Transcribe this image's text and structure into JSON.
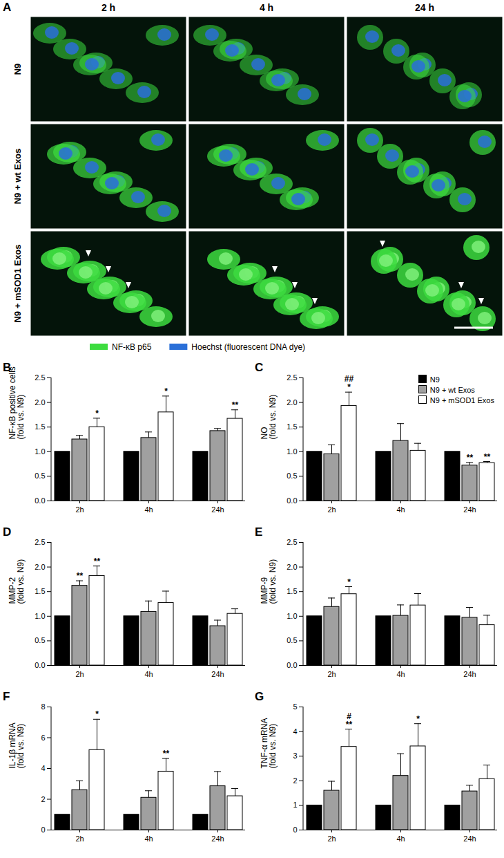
{
  "panel_a": {
    "letter": "A",
    "columns": [
      "2 h",
      "4 h",
      "24 h"
    ],
    "rows": [
      "N9",
      "N9 + wt Exos",
      "N9 + mSOD1 Exos"
    ],
    "legend": [
      {
        "label": "NF-κB p65",
        "color": "#3ddc3f"
      },
      {
        "label": "Hoechst (fluorescent DNA dye)",
        "color": "#2a6fd8"
      }
    ]
  },
  "chart_data": [
    {
      "type": "bar",
      "title": "B",
      "y_label": [
        "NF-κB positive cells",
        "(fold vs. N9)"
      ],
      "categories": [
        "2h",
        "4h",
        "24h"
      ],
      "ylim": [
        0,
        2.5
      ],
      "yticks": [
        {
          "value": 0,
          "label": "0.0"
        },
        {
          "value": 0.5,
          "label": "0.5"
        },
        {
          "value": 1,
          "label": "1.0"
        },
        {
          "value": 1.5,
          "label": "1.5"
        },
        {
          "value": 2,
          "label": "2.0"
        },
        {
          "value": 2.5,
          "label": "2.5"
        }
      ],
      "series": [
        {
          "name": "N9",
          "color": "#000000",
          "values": [
            1,
            1,
            1
          ]
        },
        {
          "name": "N9 + wt Exos",
          "color": "#a0a0a0",
          "values": [
            1.25,
            1.28,
            1.42
          ],
          "errors": [
            0.08,
            0.12,
            0.05
          ]
        },
        {
          "name": "N9 + mSOD1 Exos",
          "color": "#ffffff",
          "values": [
            1.5,
            1.8,
            1.67
          ],
          "errors": [
            0.18,
            0.33,
            0.18
          ],
          "annotations": [
            "*",
            "*",
            "**"
          ]
        }
      ]
    },
    {
      "type": "bar",
      "title": "C",
      "y_label": [
        "NO",
        "(fold vs. N9)"
      ],
      "categories": [
        "2h",
        "4h",
        "24h"
      ],
      "legend": "top-right",
      "ylim": [
        0,
        2.5
      ],
      "yticks": [
        {
          "value": 0,
          "label": "0.0"
        },
        {
          "value": 0.5,
          "label": "0.5"
        },
        {
          "value": 1,
          "label": "1.0"
        },
        {
          "value": 1.5,
          "label": "1.5"
        },
        {
          "value": 2,
          "label": "2.0"
        },
        {
          "value": 2.5,
          "label": "2.5"
        }
      ],
      "series": [
        {
          "name": "N9",
          "color": "#000000",
          "values": [
            1,
            1,
            1
          ]
        },
        {
          "name": "N9 + wt Exos",
          "color": "#a0a0a0",
          "values": [
            0.95,
            1.22,
            0.72
          ],
          "errors": [
            0.19,
            0.35,
            0.06
          ],
          "annotations": [
            null,
            null,
            "**"
          ]
        },
        {
          "name": "N9 + mSOD1 Exos",
          "color": "#ffffff",
          "values": [
            1.93,
            1.02,
            0.77
          ],
          "errors": [
            0.28,
            0.15,
            0.03
          ],
          "annotations": [
            "##\n*",
            null,
            "**"
          ]
        }
      ]
    },
    {
      "type": "bar",
      "title": "D",
      "y_label": [
        "MMP-2",
        "(fold vs. N9)"
      ],
      "categories": [
        "2h",
        "4h",
        "24h"
      ],
      "ylim": [
        0,
        2.5
      ],
      "yticks": [
        {
          "value": 0,
          "label": "0.0"
        },
        {
          "value": 0.5,
          "label": "0.5"
        },
        {
          "value": 1,
          "label": "1.0"
        },
        {
          "value": 1.5,
          "label": "1.5"
        },
        {
          "value": 2,
          "label": "2.0"
        },
        {
          "value": 2.5,
          "label": "2.5"
        }
      ],
      "series": [
        {
          "name": "N9",
          "color": "#000000",
          "values": [
            1,
            1,
            1
          ]
        },
        {
          "name": "N9 + wt Exos",
          "color": "#a0a0a0",
          "values": [
            1.62,
            1.09,
            0.8
          ],
          "errors": [
            0.1,
            0.22,
            0.12
          ],
          "annotations": [
            "**",
            null,
            null
          ]
        },
        {
          "name": "N9 + mSOD1 Exos",
          "color": "#ffffff",
          "values": [
            1.82,
            1.27,
            1.05
          ],
          "errors": [
            0.2,
            0.24,
            0.1
          ],
          "annotations": [
            "**",
            null,
            null
          ]
        }
      ]
    },
    {
      "type": "bar",
      "title": "E",
      "y_label": [
        "MMP-9",
        "(fold vs. N9)"
      ],
      "categories": [
        "2h",
        "4h",
        "24h"
      ],
      "ylim": [
        0,
        2.5
      ],
      "yticks": [
        {
          "value": 0,
          "label": "0.0"
        },
        {
          "value": 0.5,
          "label": "0.5"
        },
        {
          "value": 1,
          "label": "1.0"
        },
        {
          "value": 1.5,
          "label": "1.5"
        },
        {
          "value": 2,
          "label": "2.0"
        },
        {
          "value": 2.5,
          "label": "2.5"
        }
      ],
      "series": [
        {
          "name": "N9",
          "color": "#000000",
          "values": [
            1,
            1,
            1
          ]
        },
        {
          "name": "N9 + wt Exos",
          "color": "#a0a0a0",
          "values": [
            1.19,
            1.01,
            0.97
          ],
          "errors": [
            0.18,
            0.22,
            0.21
          ]
        },
        {
          "name": "N9 + mSOD1 Exos",
          "color": "#ffffff",
          "values": [
            1.45,
            1.22,
            0.82
          ],
          "errors": [
            0.15,
            0.24,
            0.2
          ],
          "annotations": [
            "*",
            null,
            null
          ]
        }
      ]
    },
    {
      "type": "bar",
      "title": "F",
      "y_label": [
        "IL-1β mRNA",
        "(fold vs. N9)"
      ],
      "categories": [
        "2h",
        "4h",
        "24h"
      ],
      "ylim": [
        0,
        8
      ],
      "yticks": [
        0,
        2,
        4,
        6,
        8
      ],
      "series": [
        {
          "name": "N9",
          "color": "#000000",
          "values": [
            1,
            1,
            1
          ]
        },
        {
          "name": "N9 + wt Exos",
          "color": "#a0a0a0",
          "values": [
            2.6,
            2.1,
            2.85
          ],
          "errors": [
            0.6,
            0.45,
            0.95
          ]
        },
        {
          "name": "N9 + mSOD1 Exos",
          "color": "#ffffff",
          "values": [
            5.2,
            3.8,
            2.2
          ],
          "errors": [
            2.0,
            0.85,
            0.5
          ],
          "annotations": [
            "*",
            "**",
            null
          ]
        }
      ]
    },
    {
      "type": "bar",
      "title": "G",
      "y_label": [
        "TNF-α mRNA",
        "(fold vs. N9)"
      ],
      "categories": [
        "2h",
        "4h",
        "24h"
      ],
      "ylim": [
        0,
        5
      ],
      "yticks": [
        0,
        1,
        2,
        3,
        4,
        5
      ],
      "series": [
        {
          "name": "N9",
          "color": "#000000",
          "values": [
            1,
            1,
            1
          ]
        },
        {
          "name": "N9 + wt Exos",
          "color": "#a0a0a0",
          "values": [
            1.6,
            2.2,
            1.57
          ],
          "errors": [
            0.38,
            0.9,
            0.25
          ]
        },
        {
          "name": "N9 + mSOD1 Exos",
          "color": "#ffffff",
          "values": [
            3.38,
            3.4,
            2.07
          ],
          "errors": [
            0.72,
            0.92,
            0.57
          ],
          "annotations": [
            "#\n**",
            "*",
            null
          ]
        }
      ]
    }
  ]
}
